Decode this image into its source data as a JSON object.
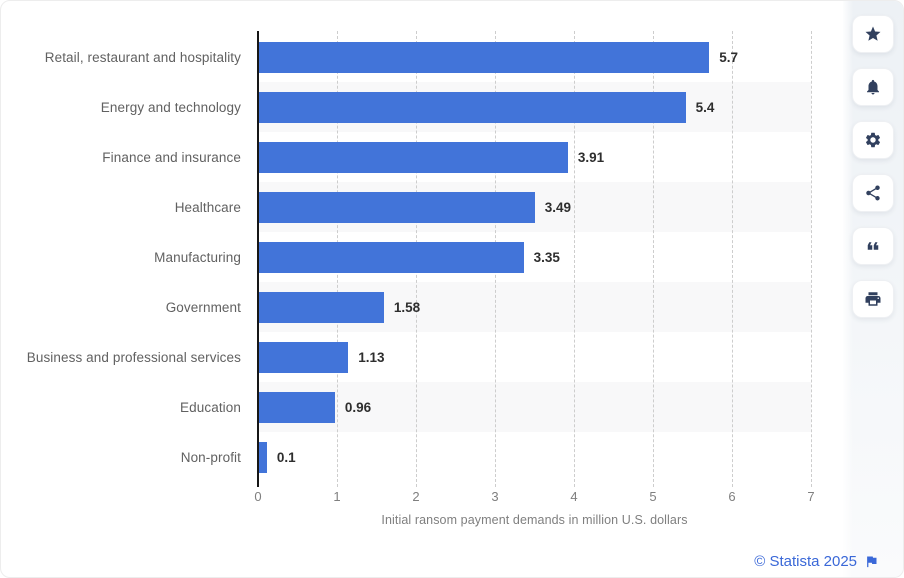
{
  "chart_data": {
    "type": "bar",
    "orientation": "horizontal",
    "categories": [
      "Retail, restaurant and hospitality",
      "Energy and technology",
      "Finance and insurance",
      "Healthcare",
      "Manufacturing",
      "Government",
      "Business and professional services",
      "Education",
      "Non-profit"
    ],
    "values": [
      5.7,
      5.4,
      3.91,
      3.49,
      3.35,
      1.58,
      1.13,
      0.96,
      0.1
    ],
    "value_labels": [
      "5.7",
      "5.4",
      "3.91",
      "3.49",
      "3.35",
      "1.58",
      "1.13",
      "0.96",
      "0.1"
    ],
    "title": "",
    "xlabel": "Initial ransom payment demands in million U.S. dollars",
    "ylabel": "",
    "xlim": [
      0,
      7
    ],
    "x_ticks": [
      "0",
      "1",
      "2",
      "3",
      "4",
      "5",
      "6",
      "7"
    ],
    "grid": "vertical-dashed",
    "legend": "none",
    "bar_color": "#4274d9",
    "row_band_color": "#f8f8f9",
    "axis_line_color": "#161616",
    "gridline_color": "#cdcdcd"
  },
  "toolbar": {
    "buttons": [
      {
        "id": "favorite",
        "icon": "star-icon"
      },
      {
        "id": "notifications",
        "icon": "bell-icon"
      },
      {
        "id": "settings",
        "icon": "gear-icon"
      },
      {
        "id": "share",
        "icon": "share-icon"
      },
      {
        "id": "cite",
        "icon": "quote-icon"
      },
      {
        "id": "print",
        "icon": "printer-icon"
      }
    ]
  },
  "footer": {
    "copyright_link": "© Statista 2025",
    "flag_icon": "flag-icon",
    "link_color": "#3a68d8"
  }
}
